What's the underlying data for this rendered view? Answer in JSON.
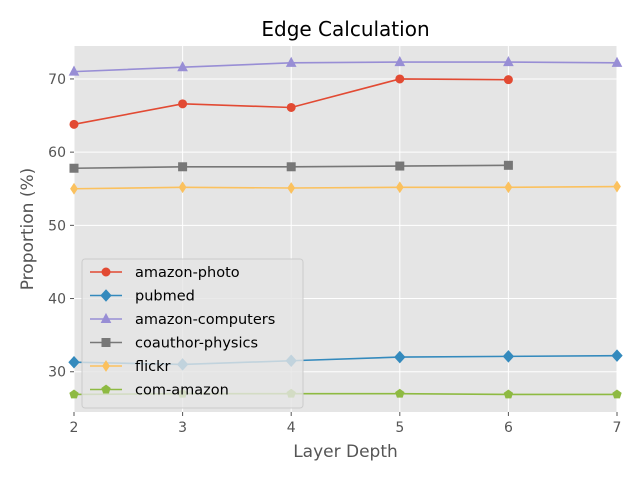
{
  "chart_data": {
    "type": "line",
    "title": "Edge Calculation",
    "xlabel": "Layer Depth",
    "ylabel": "Proportion (%)",
    "xlim": [
      2,
      7
    ],
    "ylim": [
      24.5,
      74.5
    ],
    "xticks": [
      2,
      3,
      4,
      5,
      6,
      7
    ],
    "yticks": [
      30,
      40,
      50,
      60,
      70
    ],
    "grid": true,
    "legend_position": "lower-left",
    "series": [
      {
        "name": "amazon-photo",
        "color": "#E24A33",
        "marker": "circle",
        "x": [
          2,
          3,
          4,
          5,
          6
        ],
        "y": [
          63.8,
          66.6,
          66.1,
          70.0,
          69.9
        ]
      },
      {
        "name": "pubmed",
        "color": "#348ABD",
        "marker": "diamond",
        "x": [
          2,
          3,
          4,
          5,
          6,
          7
        ],
        "y": [
          31.3,
          31.0,
          31.5,
          32.0,
          32.1,
          32.2
        ]
      },
      {
        "name": "amazon-computers",
        "color": "#988ED5",
        "marker": "triangle",
        "x": [
          2,
          3,
          4,
          5,
          6,
          7
        ],
        "y": [
          71.0,
          71.6,
          72.2,
          72.3,
          72.3,
          72.2
        ]
      },
      {
        "name": "coauthor-physics",
        "color": "#777777",
        "marker": "square",
        "x": [
          2,
          3,
          4,
          5,
          6
        ],
        "y": [
          57.8,
          58.0,
          58.0,
          58.1,
          58.2
        ]
      },
      {
        "name": "flickr",
        "color": "#FBC15E",
        "marker": "thin-diamond",
        "x": [
          2,
          3,
          4,
          5,
          6,
          7
        ],
        "y": [
          55.0,
          55.2,
          55.1,
          55.2,
          55.2,
          55.3
        ]
      },
      {
        "name": "com-amazon",
        "color": "#8EBA42",
        "marker": "pentagon",
        "x": [
          2,
          3,
          4,
          5,
          6,
          7
        ],
        "y": [
          26.9,
          27.0,
          27.0,
          27.0,
          26.9,
          26.9
        ]
      }
    ]
  }
}
